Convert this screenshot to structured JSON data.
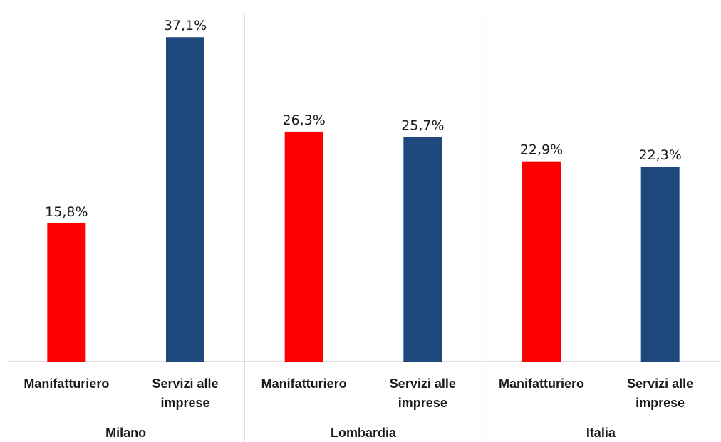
{
  "chart_data": {
    "type": "bar",
    "title": "",
    "xlabel": "",
    "ylabel": "",
    "ylim": [
      0,
      40
    ],
    "grid": false,
    "value_suffix": "%",
    "groups": [
      {
        "name": "Milano",
        "bars": [
          {
            "category": "Manifatturiero",
            "label_lines": [
              "Manifatturiero"
            ],
            "value": 15.8,
            "value_label": "15,8%",
            "color": "#ff0000"
          },
          {
            "category": "Servizi alle imprese",
            "label_lines": [
              "Servizi alle",
              "imprese"
            ],
            "value": 37.1,
            "value_label": "37,1%",
            "color": "#1f497d"
          }
        ]
      },
      {
        "name": "Lombardia",
        "bars": [
          {
            "category": "Manifatturiero",
            "label_lines": [
              "Manifatturiero"
            ],
            "value": 26.3,
            "value_label": "26,3%",
            "color": "#ff0000"
          },
          {
            "category": "Servizi alle imprese",
            "label_lines": [
              "Servizi alle",
              "imprese"
            ],
            "value": 25.7,
            "value_label": "25,7%",
            "color": "#1f497d"
          }
        ]
      },
      {
        "name": "Italia",
        "bars": [
          {
            "category": "Manifatturiero",
            "label_lines": [
              "Manifatturiero"
            ],
            "value": 22.9,
            "value_label": "22,9%",
            "color": "#ff0000"
          },
          {
            "category": "Servizi alle imprese",
            "label_lines": [
              "Servizi alle",
              "imprese"
            ],
            "value": 22.3,
            "value_label": "22,3%",
            "color": "#1f497d"
          }
        ]
      }
    ]
  }
}
